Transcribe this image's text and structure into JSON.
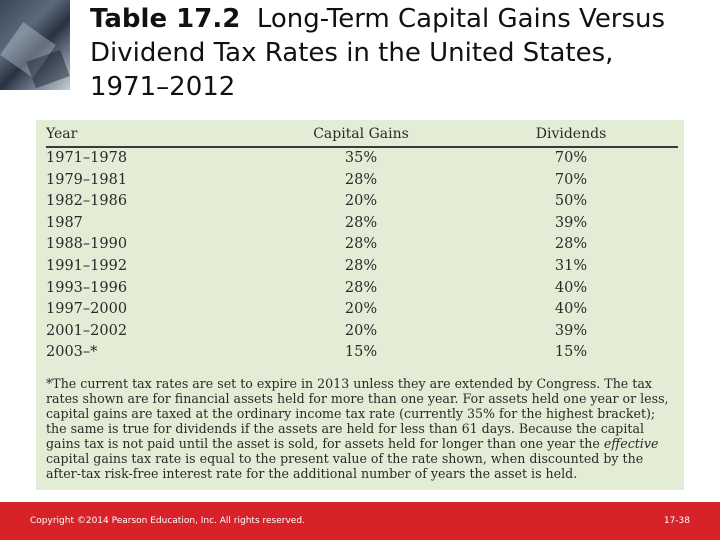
{
  "slide": {
    "title_number": "Table 17.2",
    "title_text": "Long-Term Capital Gains Versus Dividend Tax Rates in the United States, 1971–2012"
  },
  "table": {
    "headers": [
      "Year",
      "Capital Gains",
      "Dividends"
    ],
    "rows": [
      [
        "1971–1978",
        "35%",
        "70%"
      ],
      [
        "1979–1981",
        "28%",
        "70%"
      ],
      [
        "1982–1986",
        "20%",
        "50%"
      ],
      [
        "1987",
        "28%",
        "39%"
      ],
      [
        "1988–1990",
        "28%",
        "28%"
      ],
      [
        "1991–1992",
        "28%",
        "31%"
      ],
      [
        "1993–1996",
        "28%",
        "40%"
      ],
      [
        "1997–2000",
        "20%",
        "40%"
      ],
      [
        "2001–2002",
        "20%",
        "39%"
      ],
      [
        "2003–*",
        "15%",
        "15%"
      ]
    ],
    "note_before_emph": "*The current tax rates are set to expire in 2013 unless they are extended by Congress. The tax rates shown are for financial assets held for more than one year. For assets held one year or less, capital gains are taxed at the ordinary income tax rate (currently 35% for the highest bracket); the same is true for dividends if the assets are held for less than 61 days. Because the capital gains tax is not paid until the asset is sold, for assets held for longer than one year the ",
    "note_emph": "effective",
    "note_after_emph": " capital gains tax rate is equal to the present value of the rate shown, when discounted by the after-tax risk-free interest rate for the additional number of years the asset is held."
  },
  "footer": {
    "copyright": "Copyright ©2014 Pearson Education, Inc. All rights reserved.",
    "page": "17-38"
  },
  "colors": {
    "panel": "#e3edd6",
    "footer": "#d8222a"
  }
}
